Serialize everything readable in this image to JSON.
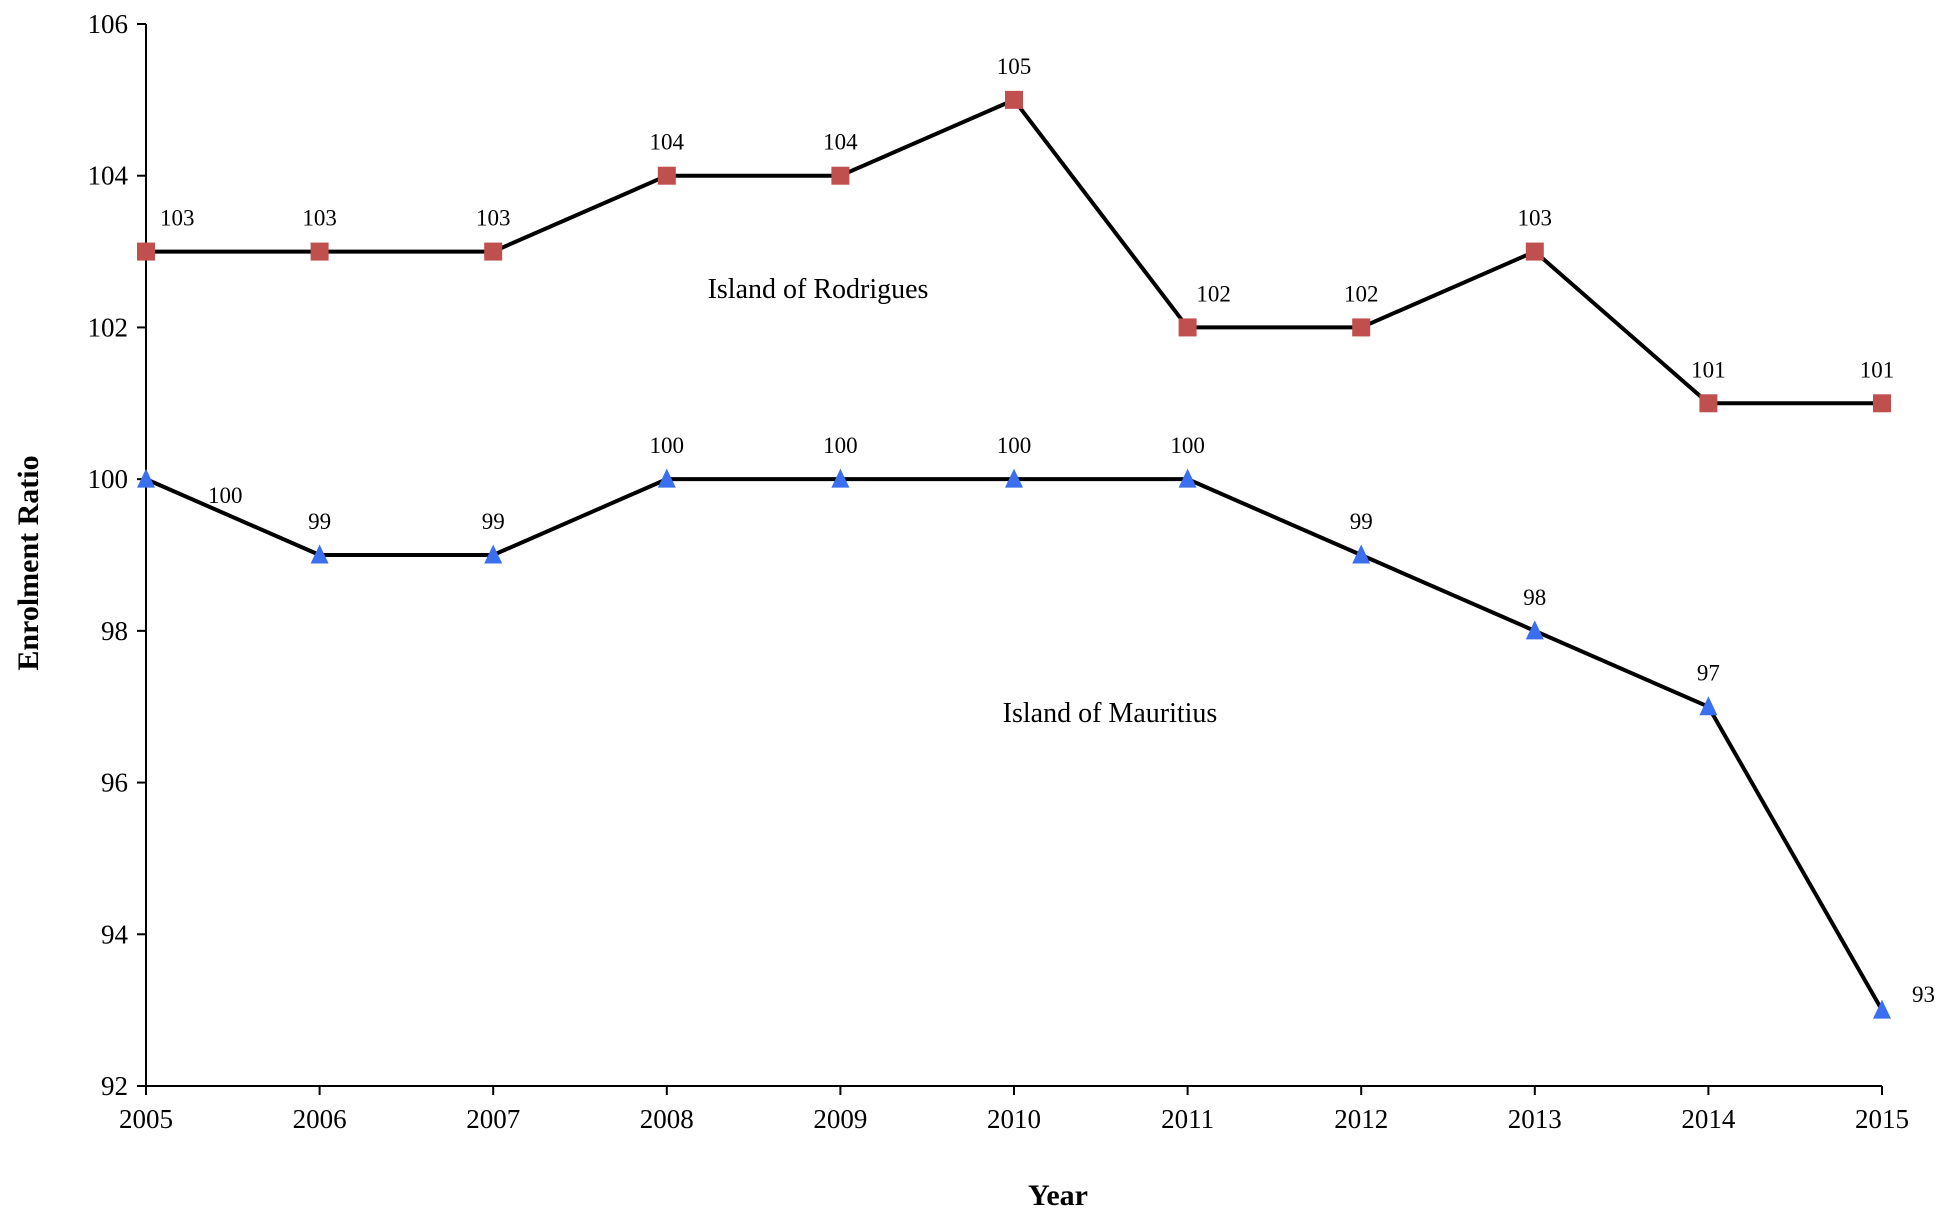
{
  "chart_data": {
    "type": "line",
    "title": "",
    "xlabel": "Year",
    "ylabel": "Enrolment Ratio",
    "x": [
      2005,
      2006,
      2007,
      2008,
      2009,
      2010,
      2011,
      2012,
      2013,
      2014,
      2015
    ],
    "x_tick_labels": [
      "2005",
      "2006",
      "2007",
      "2008",
      "2009",
      "2010",
      "2011",
      "2012",
      "2013",
      "2014",
      "2015"
    ],
    "ylim": [
      92,
      106
    ],
    "y_ticks": [
      92,
      94,
      96,
      98,
      100,
      102,
      104,
      106
    ],
    "y_tick_labels": [
      "92",
      "94",
      "96",
      "98",
      "100",
      "102",
      "104",
      "106"
    ],
    "grid": false,
    "legend": "none",
    "series": [
      {
        "name": "Island of Rodrigues",
        "values": [
          103,
          103,
          103,
          104,
          104,
          105,
          102,
          102,
          103,
          101,
          101
        ],
        "marker": "square",
        "marker_color": "#c0504d",
        "line_color": "#000000"
      },
      {
        "name": "Island of Mauritius",
        "values": [
          100,
          99,
          99,
          100,
          100,
          100,
          100,
          99,
          98,
          97,
          93
        ],
        "marker": "triangle",
        "marker_color": "#3a6ff0",
        "line_color": "#000000"
      }
    ]
  }
}
